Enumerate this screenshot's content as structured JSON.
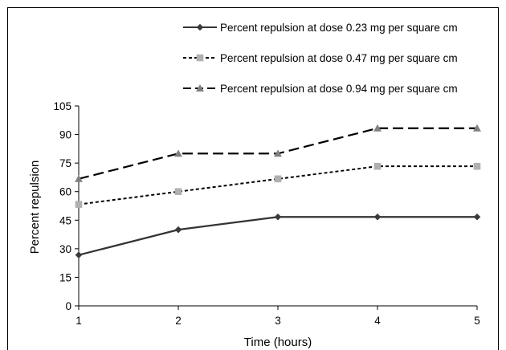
{
  "chart_data": {
    "type": "line",
    "xlabel": "Time (hours)",
    "ylabel": "Percent repulsion",
    "x": [
      1,
      2,
      3,
      4,
      5
    ],
    "xlim": [
      1,
      5
    ],
    "ylim": [
      0,
      105
    ],
    "yticks": [
      0,
      15,
      30,
      45,
      60,
      75,
      90,
      105
    ],
    "grid": false,
    "legend_position": "top-right",
    "series": [
      {
        "name": "Percent repulsion at dose 0.23 mg per square cm",
        "values": [
          26.7,
          40,
          46.7,
          46.7,
          46.7
        ],
        "line_style": "solid",
        "marker": "diamond",
        "color": "#3a3a3a"
      },
      {
        "name": "Percent repulsion at dose 0.47 mg per square cm",
        "values": [
          53.3,
          60,
          66.7,
          73.3,
          73.3
        ],
        "line_style": "dotted",
        "marker": "square",
        "color": "#b0b0b0"
      },
      {
        "name": "Percent repulsion at dose 0.94 mg per square cm",
        "values": [
          66.7,
          80,
          80,
          93.3,
          93.3
        ],
        "line_style": "dashed",
        "marker": "triangle",
        "color": "#808080"
      }
    ]
  }
}
